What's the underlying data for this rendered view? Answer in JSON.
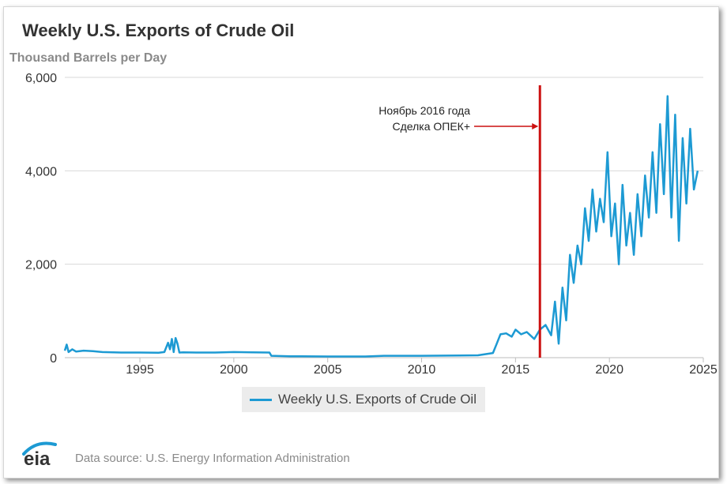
{
  "header": {
    "title": "Weekly U.S. Exports of Crude Oil",
    "units": "Thousand Barrels per Day"
  },
  "footer": {
    "source": "Data source: U.S. Energy Information Administration",
    "logo_text": "eia"
  },
  "legend": {
    "label": "Weekly U.S. Exports of Crude Oil"
  },
  "colors": {
    "series": "#1d9ad3",
    "annotation": "#cc1111",
    "grid": "#d9d9d9",
    "logo_arc": "#1d9ad3"
  },
  "annotation": {
    "line1": "Ноябрь 2016 года",
    "line2": "Сделка ОПЕК+",
    "x": 2016.3
  },
  "chart_data": {
    "type": "line",
    "title": "Weekly U.S. Exports of Crude Oil",
    "ylabel": "Thousand Barrels per Day",
    "xlim": [
      1991,
      2025
    ],
    "ylim": [
      0,
      6000
    ],
    "x_ticks": [
      1995,
      2000,
      2005,
      2010,
      2015,
      2020,
      2025
    ],
    "y_ticks": [
      0,
      2000,
      4000,
      6000
    ],
    "y_tick_labels": [
      "0",
      "2,000",
      "4,000",
      "6,000"
    ],
    "grid": true,
    "legend_position": "bottom-center",
    "series": [
      {
        "name": "Weekly U.S. Exports of Crude Oil",
        "x": [
          1991.0,
          1991.1,
          1991.2,
          1991.4,
          1991.6,
          1992.0,
          1992.5,
          1993.0,
          1994.0,
          1995.0,
          1996.0,
          1996.3,
          1996.5,
          1996.6,
          1996.7,
          1996.8,
          1996.9,
          1997.0,
          1997.1,
          1997.3,
          1998.0,
          1999.0,
          2000.0,
          2001.0,
          2001.9,
          2002.0,
          2003.0,
          2005.0,
          2007.0,
          2008.0,
          2010.0,
          2012.0,
          2013.0,
          2013.8,
          2014.0,
          2014.2,
          2014.5,
          2014.8,
          2015.0,
          2015.3,
          2015.6,
          2016.0,
          2016.3,
          2016.6,
          2016.9,
          2017.1,
          2017.3,
          2017.5,
          2017.7,
          2017.9,
          2018.1,
          2018.3,
          2018.5,
          2018.7,
          2018.9,
          2019.1,
          2019.3,
          2019.5,
          2019.7,
          2019.9,
          2020.1,
          2020.3,
          2020.5,
          2020.7,
          2020.9,
          2021.1,
          2021.3,
          2021.5,
          2021.7,
          2021.9,
          2022.1,
          2022.3,
          2022.5,
          2022.7,
          2022.9,
          2023.1,
          2023.3,
          2023.5,
          2023.7,
          2023.9,
          2024.1,
          2024.3,
          2024.5,
          2024.7
        ],
        "y": [
          150,
          280,
          120,
          180,
          130,
          150,
          140,
          120,
          110,
          110,
          105,
          120,
          320,
          180,
          400,
          120,
          420,
          300,
          110,
          115,
          110,
          110,
          120,
          115,
          110,
          40,
          30,
          25,
          25,
          40,
          40,
          45,
          50,
          100,
          300,
          500,
          520,
          450,
          600,
          500,
          550,
          400,
          600,
          700,
          480,
          1200,
          300,
          1500,
          800,
          2200,
          1600,
          2400,
          2000,
          3200,
          2500,
          3600,
          2700,
          3400,
          2900,
          4400,
          2600,
          3300,
          2000,
          3700,
          2400,
          3100,
          2200,
          3500,
          2600,
          3900,
          3000,
          4400,
          3100,
          5000,
          3500,
          5600,
          3000,
          5200,
          2500,
          4700,
          3300,
          4900,
          3600,
          4000
        ]
      }
    ]
  }
}
